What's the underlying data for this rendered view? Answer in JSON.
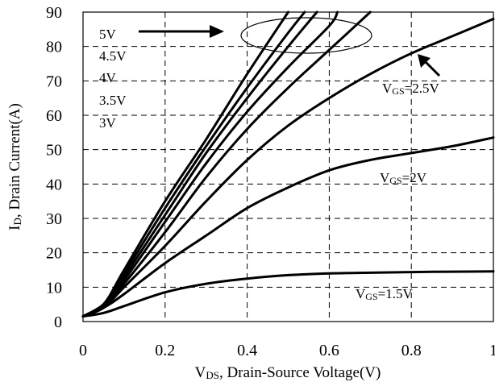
{
  "chart_data": {
    "type": "line",
    "xlabel": "V_DS, Drain-Source Voltage(V)",
    "xlabel_parts": {
      "v": "V",
      "sub": "DS",
      "rest": ", Drain-Source Voltage(V)"
    },
    "ylabel": "I_D, Drain Current(A)",
    "ylabel_parts": {
      "v": "I",
      "sub": "D",
      "rest": ", Drain Current(A)"
    },
    "xlim": [
      0,
      1
    ],
    "ylim": [
      0,
      90
    ],
    "xticks": [
      0,
      0.2,
      0.4,
      0.6,
      0.8,
      1
    ],
    "xtick_labels": [
      "0",
      "0.2",
      "0.4",
      "0.6",
      "0.8",
      "1"
    ],
    "yticks": [
      0,
      10,
      20,
      30,
      40,
      50,
      60,
      70,
      80,
      90
    ],
    "ytick_labels": [
      "0",
      "10",
      "20",
      "30",
      "40",
      "50",
      "60",
      "70",
      "80",
      "90"
    ],
    "grid": true,
    "series": [
      {
        "name": "5V",
        "x": [
          0,
          0.05,
          0.1,
          0.2,
          0.3,
          0.4,
          0.5
        ],
        "y": [
          1.5,
          5,
          15,
          35,
          53,
          72,
          90
        ]
      },
      {
        "name": "4.5V",
        "x": [
          0,
          0.05,
          0.1,
          0.2,
          0.3,
          0.4,
          0.5,
          0.54
        ],
        "y": [
          1.5,
          5,
          14,
          33,
          51,
          68,
          84,
          90
        ]
      },
      {
        "name": "4V",
        "x": [
          0,
          0.05,
          0.1,
          0.2,
          0.3,
          0.4,
          0.5,
          0.57
        ],
        "y": [
          1.5,
          5,
          13,
          31,
          49,
          65,
          80,
          90
        ]
      },
      {
        "name": "3.5V",
        "x": [
          0,
          0.05,
          0.1,
          0.2,
          0.3,
          0.4,
          0.5,
          0.6,
          0.62
        ],
        "y": [
          1.5,
          5,
          12,
          29,
          46,
          61,
          74,
          86,
          90
        ]
      },
      {
        "name": "3V",
        "x": [
          0,
          0.05,
          0.1,
          0.2,
          0.3,
          0.4,
          0.5,
          0.6,
          0.7
        ],
        "y": [
          1.5,
          4.5,
          11,
          26,
          42,
          56,
          68,
          79,
          90
        ]
      },
      {
        "name": "2.5V",
        "x": [
          0,
          0.05,
          0.1,
          0.2,
          0.3,
          0.4,
          0.5,
          0.6,
          0.7,
          0.8,
          0.9,
          1.0
        ],
        "y": [
          1.5,
          4,
          10,
          22,
          35,
          47,
          57,
          65,
          72,
          78,
          83,
          88
        ]
      },
      {
        "name": "2V",
        "x": [
          0,
          0.05,
          0.1,
          0.2,
          0.3,
          0.4,
          0.5,
          0.6,
          0.7,
          0.8,
          0.9,
          1.0
        ],
        "y": [
          1.5,
          4,
          8,
          17,
          25,
          33,
          39,
          44,
          47,
          49,
          51,
          53.5
        ]
      },
      {
        "name": "1.5V",
        "x": [
          0,
          0.05,
          0.1,
          0.2,
          0.3,
          0.4,
          0.5,
          0.6,
          0.7,
          0.8,
          0.9,
          1.0
        ],
        "y": [
          1.5,
          2.5,
          4.5,
          8.5,
          11,
          12.5,
          13.5,
          14,
          14.2,
          14.4,
          14.5,
          14.6
        ]
      }
    ],
    "annotations": {
      "legend_top": [
        "5V",
        "4.5V",
        "4V",
        "3.5V",
        "3V"
      ],
      "label_25": {
        "v": "V",
        "sub": "GS",
        "rest": "=2.5V"
      },
      "label_2": {
        "v": "V",
        "sub": "GS",
        "rest": "=2V"
      },
      "label_15": {
        "v": "V",
        "sub": "GS",
        "rest": "=1.5V"
      }
    }
  }
}
